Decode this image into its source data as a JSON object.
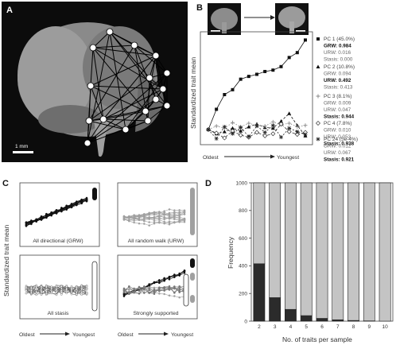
{
  "panelA": {
    "label": "A",
    "scale_text": "1 mm"
  },
  "panelB": {
    "label": "B",
    "ylabel": "Standardized trait mean",
    "x_left": "Oldest",
    "x_right": "Youngest",
    "chart_data": {
      "type": "line",
      "x": [
        1,
        2,
        3,
        4,
        5,
        6,
        7,
        8,
        9,
        10,
        11,
        12,
        13
      ],
      "series": [
        {
          "name": "PC 1 (45.0%)",
          "marker": "square",
          "values": [
            0,
            2.9,
            5.0,
            5.7,
            7.2,
            7.6,
            7.9,
            8.3,
            8.5,
            9.0,
            10.3,
            11.0,
            12.8
          ]
        },
        {
          "name": "PC 2 (10.8%)",
          "marker": "triangle",
          "values": [
            0,
            -0.6,
            -0.3,
            0.2,
            -0.2,
            0.4,
            0.8,
            0.3,
            0.2,
            1.2,
            2.3,
            0.6,
            -0.9
          ]
        },
        {
          "name": "PC 3 (8.1%)",
          "marker": "plus",
          "values": [
            0,
            0.5,
            0.2,
            1.0,
            0.4,
            0.9,
            0.6,
            0.5,
            1.1,
            0.7,
            0.9,
            0.4,
            0.6
          ]
        },
        {
          "name": "PC 4 (7.8%)",
          "marker": "diamond",
          "values": [
            0,
            -0.5,
            -1.2,
            -0.2,
            -0.8,
            -1.1,
            -0.4,
            -0.9,
            -0.6,
            0.8,
            -0.3,
            -0.7,
            -0.4
          ]
        },
        {
          "name": "PC 24 (5e-4%)",
          "marker": "star",
          "values": [
            0,
            -1.3,
            0.4,
            -0.6,
            0.3,
            -1.0,
            0.5,
            -0.4,
            0.6,
            -1.1,
            0.2,
            -0.3,
            -0.7
          ]
        }
      ]
    },
    "legend": [
      {
        "title": "PC 1 (45.0%)",
        "stats": [
          {
            "t": "GRW: 0.984",
            "b": true
          },
          {
            "t": "URW: 0.016",
            "b": false
          },
          {
            "t": "Stasis: 0.000",
            "b": false
          }
        ]
      },
      {
        "title": "PC 2 (10.8%)",
        "stats": [
          {
            "t": "GRW: 0.094",
            "b": false
          },
          {
            "t": "URW: 0.492",
            "b": true
          },
          {
            "t": "Stasis: 0.413",
            "b": false
          }
        ]
      },
      {
        "title": "PC 3 (8.1%)",
        "stats": [
          {
            "t": "GRW: 0.009",
            "b": false
          },
          {
            "t": "URW: 0.047",
            "b": false
          },
          {
            "t": "Stasis: 0.944",
            "b": true
          }
        ]
      },
      {
        "title": "PC 4 (7.8%)",
        "stats": [
          {
            "t": "GRW: 0.010",
            "b": false
          },
          {
            "t": "URW: 0.053",
            "b": false
          },
          {
            "t": "Stasis: 0.938",
            "b": true
          }
        ]
      },
      {
        "title": "PC 24 (5e-4%)",
        "stats": [
          {
            "t": "GRW: 0.012",
            "b": false
          },
          {
            "t": "URW: 0.067",
            "b": false
          },
          {
            "t": "Stasis: 0.921",
            "b": true
          }
        ]
      }
    ]
  },
  "panelC": {
    "label": "C",
    "ylabel": "Standardized trait mean",
    "x_left": "Oldest",
    "x_right": "Youngest",
    "subplots": [
      {
        "caption": "All directional (GRW)",
        "style": "black"
      },
      {
        "caption": "All random walk (URW)",
        "style": "gray"
      },
      {
        "caption": "All stasis",
        "style": "white"
      },
      {
        "caption": "Strongly supported",
        "style": "mixed"
      }
    ]
  },
  "panelD": {
    "label": "D",
    "ylabel": "Frequency",
    "xlabel": "No. of traits per sample",
    "chart_data": {
      "type": "bar",
      "categories": [
        "2",
        "3",
        "4",
        "5",
        "6",
        "7",
        "8",
        "9",
        "10"
      ],
      "series": [
        {
          "values": [
            415,
            170,
            85,
            40,
            20,
            10,
            5,
            2,
            0
          ],
          "color": "#2b2b2b"
        },
        {
          "values": [
            585,
            830,
            915,
            960,
            980,
            990,
            995,
            998,
            1000
          ],
          "color": "#c4c4c4"
        }
      ],
      "ylim": [
        0,
        1000
      ],
      "yticks": [
        "0",
        "200",
        "400",
        "600",
        "800",
        "1000"
      ]
    }
  }
}
